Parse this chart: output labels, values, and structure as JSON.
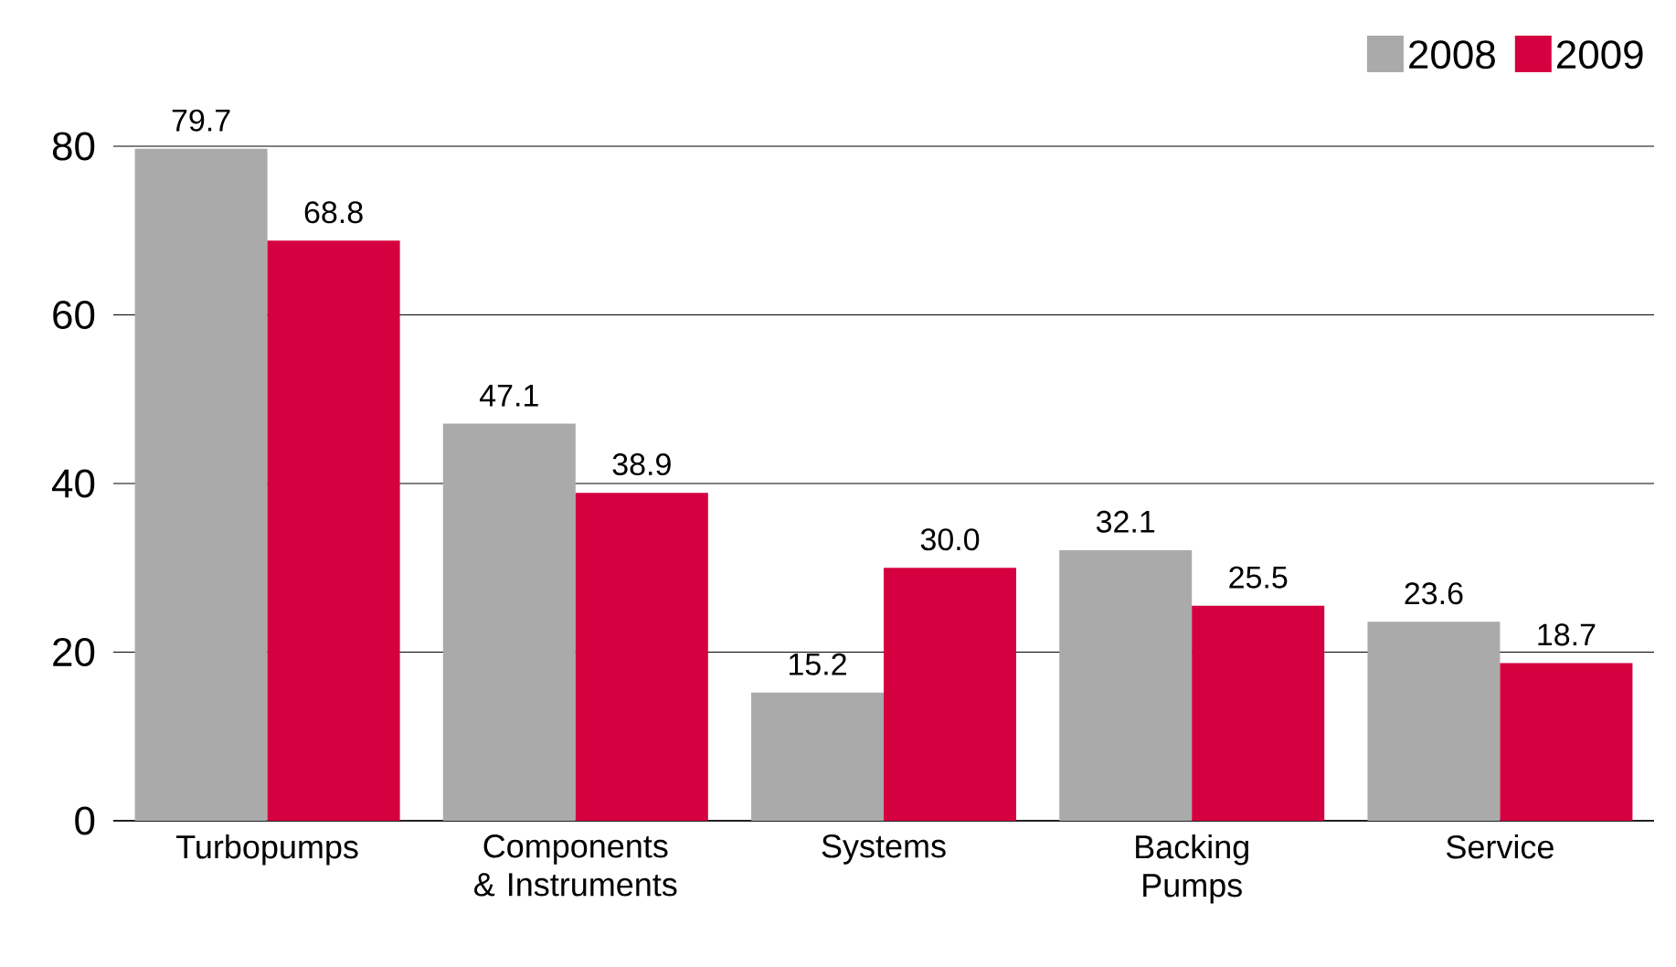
{
  "chart_data": {
    "type": "bar",
    "categories": [
      "Turbopumps",
      "Components & Instruments",
      "Systems",
      "Backing Pumps",
      "Service"
    ],
    "series": [
      {
        "name": "2008",
        "color": "#aaaaaa",
        "values": [
          79.7,
          47.1,
          15.2,
          32.1,
          23.6
        ],
        "value_labels": [
          "79.7",
          "47.1",
          "15.2",
          "32.1",
          "23.6"
        ]
      },
      {
        "name": "2009",
        "color": "#d40040",
        "values": [
          68.8,
          38.9,
          30.0,
          25.5,
          18.7
        ],
        "value_labels": [
          "68.8",
          "38.9",
          "30.0",
          "25.5",
          "18.7"
        ]
      }
    ],
    "ylim": [
      0,
      80
    ],
    "yticks": [
      0,
      20,
      40,
      60,
      80
    ],
    "grid": "y",
    "legend": "top right"
  }
}
